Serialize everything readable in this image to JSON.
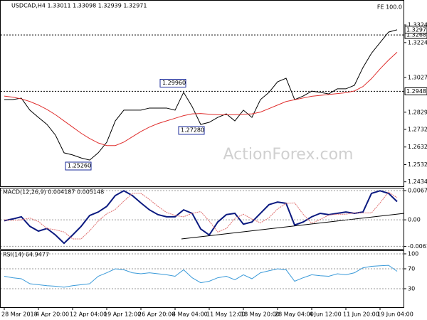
{
  "chart_data": [
    {
      "type": "line",
      "title": "USDCAD,H4  1.33011 1.33098 1.32939 1.32971",
      "corner_label": "FE 100.0",
      "watermark": "ActionForex.com",
      "series": [
        {
          "color": "#000000",
          "values": [
            1.2901,
            1.2901,
            1.2909,
            1.2841,
            1.28,
            1.276,
            1.2699,
            1.2599,
            1.2587,
            1.257,
            1.2558,
            1.2599,
            1.2659,
            1.278,
            1.2841,
            1.2841,
            1.2841,
            1.2853,
            1.2853,
            1.2853,
            1.2841,
            1.2942,
            1.2861,
            1.276,
            1.2772,
            1.28,
            1.282,
            1.278,
            1.2841,
            1.28,
            1.2901,
            1.2942,
            1.3002,
            1.3022,
            1.2901,
            1.2921,
            1.2949,
            1.2942,
            1.2933,
            1.2962,
            1.2962,
            1.2982,
            1.3083,
            1.3164,
            1.3224,
            1.3284,
            1.3297
          ]
        },
        {
          "color": "#e0302f",
          "values": [
            1.2921,
            1.2915,
            1.2905,
            1.289,
            1.287,
            1.2845,
            1.2815,
            1.278,
            1.2745,
            1.271,
            1.268,
            1.2655,
            1.264,
            1.264,
            1.266,
            1.269,
            1.272,
            1.2745,
            1.2765,
            1.278,
            1.2795,
            1.281,
            1.282,
            1.2822,
            1.2818,
            1.2815,
            1.2815,
            1.2815,
            1.2818,
            1.282,
            1.283,
            1.285,
            1.287,
            1.289,
            1.29,
            1.291,
            1.292,
            1.2925,
            1.293,
            1.2935,
            1.294,
            1.295,
            1.2975,
            1.302,
            1.3075,
            1.3125,
            1.317
          ]
        }
      ],
      "ylim": [
        1.2409,
        1.3466
      ],
      "yticks": [
        1.33245,
        1.32245,
        {
          "value": 1.3027,
          "label": "1.30270"
        },
        1.28295,
        {
          "value": 1.2732,
          "label": "1.27320"
        },
        {
          "value": 1.2632,
          "label": "1.26320"
        },
        {
          "value": 1.2532,
          "label": "1.25320"
        },
        1.24345
      ],
      "levels": [
        {
          "value": 1.3268,
          "label": "1.32680"
        },
        {
          "value": 1.2948,
          "label": "1.29480"
        }
      ],
      "last_price": 1.32971,
      "annotations": [
        {
          "value": 1.2996,
          "label": "1.29960"
        },
        {
          "value": 1.2728,
          "label": "1.27280"
        },
        {
          "value": 1.2526,
          "label": "1.25260"
        }
      ]
    },
    {
      "type": "line",
      "title": "MACD(12,26,9) 0.004187 0.005148",
      "series": [
        {
          "color": "#0b1a80",
          "values": [
            -0.0002,
            0.0002,
            0.0007,
            -0.0015,
            -0.0026,
            -0.002,
            -0.0035,
            -0.0054,
            -0.0035,
            -0.0015,
            0.001,
            0.0018,
            0.0031,
            0.0056,
            0.0067,
            0.0056,
            0.0039,
            0.0023,
            0.0012,
            0.0007,
            0.0007,
            0.0023,
            0.0015,
            -0.0021,
            -0.0035,
            -0.0005,
            0.0012,
            0.0015,
            -0.001,
            -0.0005,
            0.0015,
            0.0035,
            0.0041,
            0.0038,
            -0.0012,
            -0.0005,
            0.0007,
            0.0015,
            0.0012,
            0.0015,
            0.0018,
            0.0015,
            0.0018,
            0.0061,
            0.0067,
            0.0061,
            0.0042
          ]
        },
        {
          "color": "#e07070",
          "values": [
            0.0,
            -0.0001,
            0.0,
            0.0004,
            -0.0004,
            -0.002,
            -0.0023,
            -0.0028,
            -0.0044,
            -0.0044,
            -0.0025,
            -0.0003,
            0.0014,
            0.0024,
            0.0043,
            0.0061,
            0.0061,
            0.0047,
            0.0031,
            0.0017,
            0.001,
            0.0007,
            0.0015,
            0.0019,
            -0.0003,
            -0.0028,
            -0.002,
            0.0003,
            0.0013,
            0.0002,
            -0.0007,
            0.0005,
            0.0025,
            0.0038,
            0.0039,
            0.0013,
            -0.0008,
            0.0001,
            0.0011,
            0.0013,
            0.0013,
            0.0016,
            0.0016,
            0.0016,
            0.0039,
            0.0064,
            0.0051
          ]
        }
      ],
      "ylim": [
        -0.0067,
        0.0074
      ],
      "yticks": [
        0.006745,
        {
          "value": 0,
          "label": "0.00"
        },
        -0.006115
      ]
    },
    {
      "type": "line",
      "title": "RSI(14) 64.9477",
      "series": [
        {
          "color": "#3a9ad9",
          "values": [
            55,
            52,
            50,
            40,
            38,
            36,
            35,
            33,
            36,
            38,
            40,
            55,
            62,
            70,
            68,
            62,
            60,
            62,
            60,
            58,
            55,
            68,
            52,
            42,
            45,
            52,
            55,
            48,
            58,
            50,
            62,
            66,
            70,
            68,
            45,
            52,
            58,
            56,
            55,
            60,
            58,
            62,
            72,
            75,
            76,
            77,
            65
          ]
        }
      ],
      "ylim": [
        -7.1,
        107.1
      ],
      "yticks": [
        100,
        70,
        30
      ],
      "categories": [
        "28 Mar 2018",
        null,
        null,
        null,
        "4 Apr 20:00",
        null,
        null,
        null,
        "12 Apr 04:00",
        null,
        null,
        null,
        "19 Apr 12:00",
        null,
        null,
        null,
        "26 Apr 20:00",
        null,
        null,
        null,
        "4 May 04:00",
        null,
        null,
        null,
        "11 May 12:00",
        null,
        null,
        null,
        "18 May 20:00",
        null,
        null,
        null,
        "28 May 04:00",
        null,
        null,
        null,
        "4 Jun 12:00",
        null,
        null,
        null,
        "11 Jun 20:00",
        null,
        null,
        null,
        "19 Jun 04:00",
        null,
        null
      ]
    }
  ]
}
